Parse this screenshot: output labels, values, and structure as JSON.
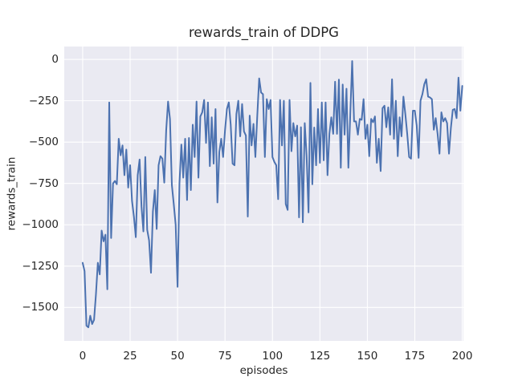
{
  "figure": {
    "kind": "matplotlib-seaborn-figure"
  },
  "chart_data": {
    "type": "line",
    "title": "rewards_train of DDPG",
    "xlabel": "episodes",
    "ylabel": "rewards_train",
    "x_start": 0,
    "x_step": 1,
    "x_ticks": [
      0,
      25,
      50,
      75,
      100,
      125,
      150,
      175,
      200
    ],
    "y_ticks": [
      0,
      -250,
      -500,
      -750,
      -1000,
      -1250,
      -1500
    ],
    "xlim": [
      -9.7,
      200.6
    ],
    "ylim": [
      -1702,
      78
    ],
    "grid": true,
    "legend": false,
    "line_color": "#4C72B0",
    "plot_bg": "#EAEAF2",
    "grid_color": "#FFFFFF",
    "text_color": "#262626",
    "values": [
      -1230,
      -1280,
      -1610,
      -1620,
      -1550,
      -1600,
      -1575,
      -1420,
      -1230,
      -1300,
      -1035,
      -1100,
      -1060,
      -1390,
      -260,
      -1080,
      -750,
      -735,
      -755,
      -480,
      -580,
      -520,
      -700,
      -545,
      -775,
      -640,
      -855,
      -950,
      -1075,
      -700,
      -605,
      -890,
      -1040,
      -590,
      -1030,
      -1095,
      -1290,
      -920,
      -790,
      -1025,
      -640,
      -585,
      -600,
      -745,
      -430,
      -255,
      -360,
      -760,
      -875,
      -1000,
      -1375,
      -750,
      -515,
      -715,
      -480,
      -850,
      -475,
      -790,
      -395,
      -590,
      -255,
      -715,
      -345,
      -320,
      -245,
      -505,
      -260,
      -645,
      -350,
      -630,
      -300,
      -865,
      -560,
      -480,
      -590,
      -430,
      -300,
      -260,
      -395,
      -630,
      -640,
      -330,
      -250,
      -465,
      -270,
      -435,
      -460,
      -950,
      -340,
      -520,
      -390,
      -590,
      -340,
      -115,
      -200,
      -210,
      -590,
      -240,
      -300,
      -245,
      -590,
      -620,
      -640,
      -845,
      -245,
      -520,
      -250,
      -875,
      -910,
      -245,
      -555,
      -385,
      -465,
      -400,
      -955,
      -410,
      -985,
      -385,
      -585,
      -925,
      -142,
      -755,
      -412,
      -640,
      -300,
      -625,
      -260,
      -610,
      -260,
      -700,
      -450,
      -350,
      -450,
      -135,
      -450,
      -122,
      -655,
      -152,
      -455,
      -177,
      -655,
      -330,
      -10,
      -375,
      -375,
      -455,
      -360,
      -365,
      -240,
      -480,
      -395,
      -585,
      -360,
      -380,
      -345,
      -625,
      -480,
      -675,
      -295,
      -280,
      -410,
      -290,
      -455,
      -120,
      -480,
      -250,
      -585,
      -350,
      -465,
      -225,
      -330,
      -450,
      -590,
      -600,
      -310,
      -310,
      -400,
      -595,
      -250,
      -210,
      -150,
      -120,
      -225,
      -230,
      -240,
      -425,
      -355,
      -450,
      -570,
      -320,
      -375,
      -355,
      -385,
      -570,
      -415,
      -305,
      -300,
      -355,
      -110,
      -310,
      -160
    ]
  }
}
